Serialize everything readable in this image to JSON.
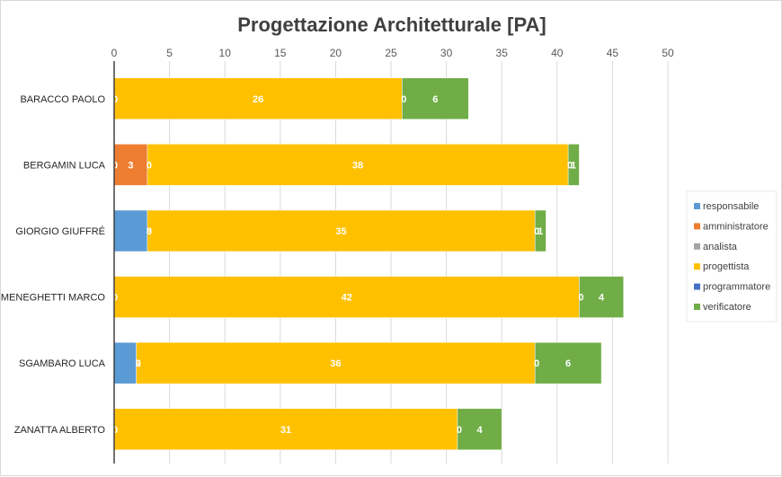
{
  "chart_data": {
    "type": "bar",
    "orientation": "horizontal",
    "stacked": true,
    "title": "Progettazione Architetturale [PA]",
    "xlabel": "",
    "ylabel": "",
    "xlim": [
      0,
      50
    ],
    "x_ticks": [
      0,
      5,
      10,
      15,
      20,
      25,
      30,
      35,
      40,
      45,
      50
    ],
    "grid": true,
    "legend_position": "right",
    "categories": [
      "BARACCO PAOLO",
      "BERGAMIN LUCA",
      "GIORGIO GIUFFRÉ",
      "MENEGHETTI MARCO",
      "SGAMBARO LUCA",
      "ZANATTA ALBERTO"
    ],
    "series": [
      {
        "name": "responsabile",
        "color": "#5b9bd5",
        "values": [
          0,
          0,
          3,
          0,
          2,
          0
        ]
      },
      {
        "name": "amministratore",
        "color": "#ed7d31",
        "values": [
          0,
          3,
          0,
          0,
          0,
          0
        ]
      },
      {
        "name": "analista",
        "color": "#a5a5a5",
        "values": [
          0,
          0,
          0,
          0,
          0,
          0
        ]
      },
      {
        "name": "progettista",
        "color": "#ffc000",
        "values": [
          26,
          38,
          35,
          42,
          36,
          31
        ]
      },
      {
        "name": "programmatore",
        "color": "#4472c4",
        "values": [
          0,
          0,
          0,
          0,
          0,
          0
        ]
      },
      {
        "name": "verificatore",
        "color": "#70ad47",
        "values": [
          6,
          1,
          1,
          4,
          6,
          4
        ]
      }
    ],
    "data_labels": [
      [
        "0",
        "",
        "",
        "26",
        "0",
        "6"
      ],
      [
        "0",
        "3",
        "0",
        "38",
        "0",
        "1"
      ],
      [
        "",
        "3",
        "0",
        "35",
        "0",
        "1"
      ],
      [
        "0",
        "",
        "",
        "42",
        "0",
        "4"
      ],
      [
        "",
        "2",
        "0",
        "36",
        "0",
        "6"
      ],
      [
        "0",
        "",
        "",
        "31",
        "0",
        "4"
      ]
    ]
  }
}
